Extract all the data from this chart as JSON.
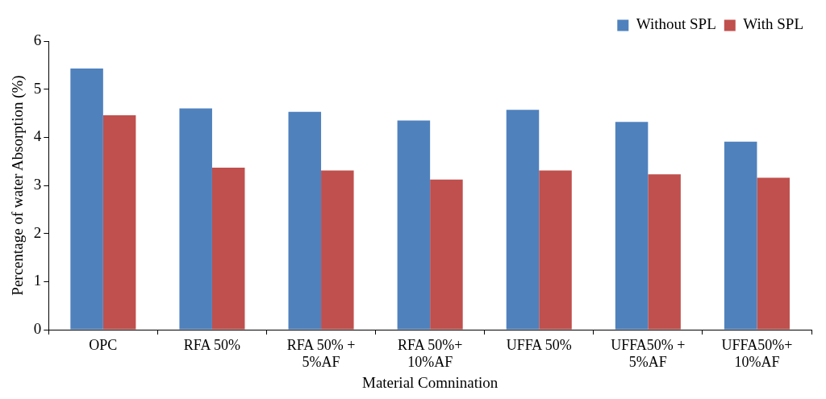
{
  "chart_data": {
    "type": "bar",
    "xlabel": "Material Comnination",
    "ylabel": "Percentage of water Absorption (%)",
    "categories": [
      "OPC",
      "RFA 50%",
      "RFA 50% +\n5%AF",
      "RFA 50%+\n10%AF",
      "UFFA 50%",
      "UFFA50% +\n5%AF",
      "UFFA50%+\n10%AF"
    ],
    "series": [
      {
        "name": "Without SPL",
        "color": "#4f81bd",
        "values": [
          5.43,
          4.6,
          4.53,
          4.35,
          4.57,
          4.32,
          3.91
        ]
      },
      {
        "name": "With SPL",
        "color": "#c0504d",
        "values": [
          4.46,
          3.37,
          3.31,
          3.12,
          3.31,
          3.23,
          3.16
        ]
      }
    ],
    "ylim": [
      0,
      6
    ],
    "yticks": [
      0,
      1,
      2,
      3,
      4,
      5,
      6
    ],
    "grid": false,
    "legend": "top right"
  }
}
